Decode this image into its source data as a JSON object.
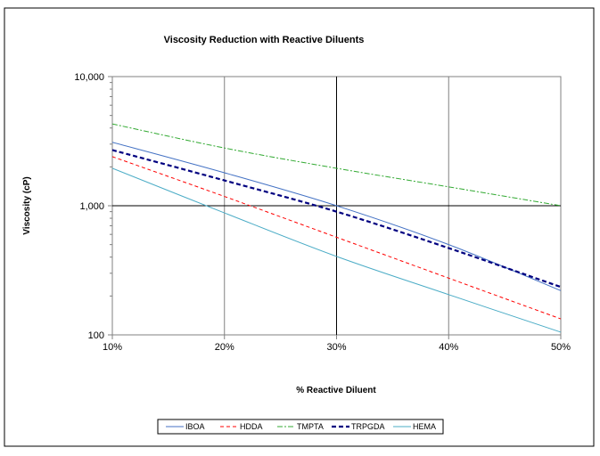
{
  "chart_data": {
    "type": "line",
    "title": "Viscosity Reduction with Reactive Diluents",
    "xlabel": "% Reactive Diluent",
    "ylabel": "Viscosity (cP)",
    "x": [
      10,
      20,
      30,
      40,
      50
    ],
    "x_tick_labels": [
      "10%",
      "20%",
      "30%",
      "40%",
      "50%"
    ],
    "xlim": [
      10,
      50
    ],
    "y_scale": "log",
    "ylim": [
      100,
      10000
    ],
    "y_tick_labels": [
      "100",
      "1,000",
      "10,000"
    ],
    "y_ticks": [
      100,
      1000,
      10000
    ],
    "grid": true,
    "legend_position": "bottom",
    "series": [
      {
        "name": "IBOA",
        "values": [
          3100,
          1800,
          1000,
          500,
          220
        ],
        "color": "#4472c4",
        "dash": "solid",
        "width": 1
      },
      {
        "name": "HDDA",
        "values": [
          2400,
          1180,
          570,
          275,
          133
        ],
        "color": "#ff0000",
        "dash": "dashed",
        "width": 1
      },
      {
        "name": "TMPTA",
        "values": [
          4300,
          2800,
          1950,
          1400,
          1000
        ],
        "color": "#33aa33",
        "dash": "dashdot",
        "width": 1
      },
      {
        "name": "TRPGDA",
        "values": [
          2700,
          1570,
          900,
          470,
          235
        ],
        "color": "#000080",
        "dash": "dashed-bold",
        "width": 2.2
      },
      {
        "name": "HEMA",
        "values": [
          1950,
          880,
          405,
          205,
          105
        ],
        "color": "#4bacc6",
        "dash": "solid",
        "width": 1
      }
    ]
  }
}
